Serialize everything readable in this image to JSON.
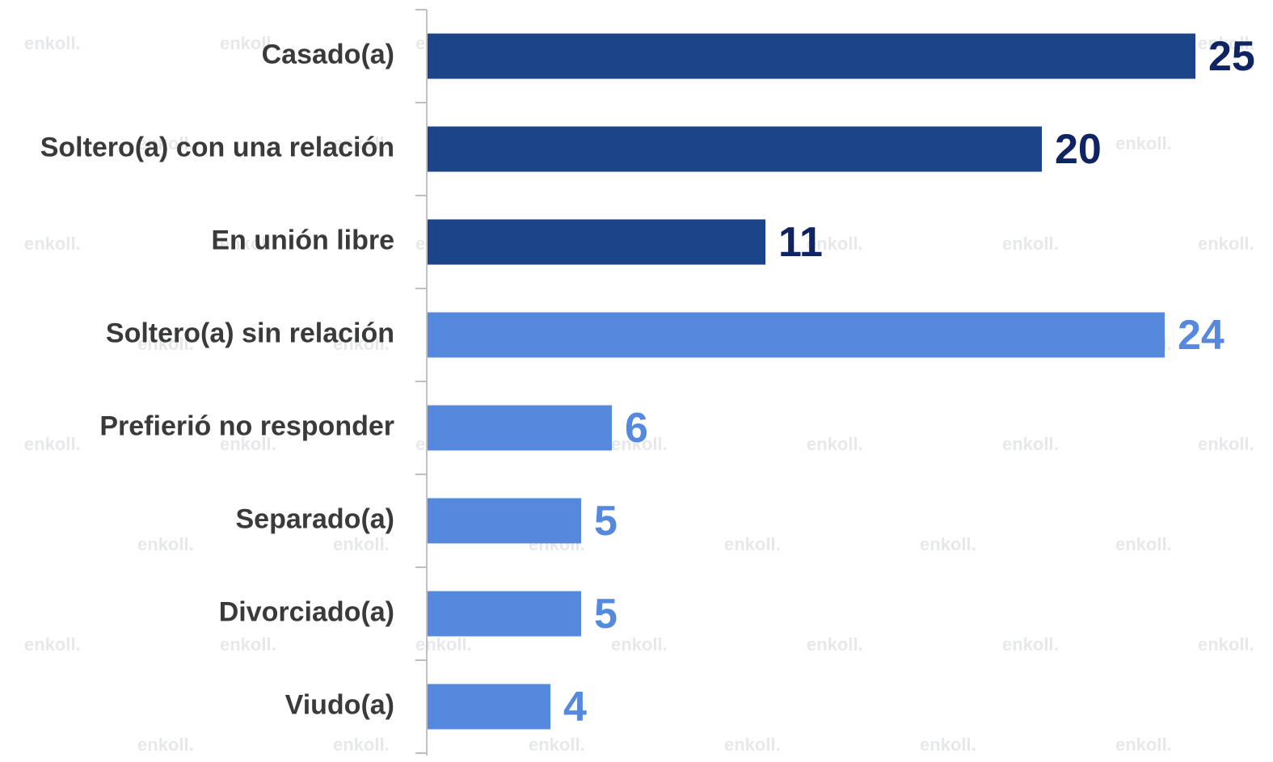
{
  "chart_data": {
    "type": "bar",
    "orientation": "horizontal",
    "categories": [
      "Casado(a)",
      "Soltero(a) con una relación",
      "En unión libre",
      "Soltero(a) sin relación",
      "Prefierió no responder",
      "Separado(a)",
      "Divorciado(a)",
      "Viudo(a)"
    ],
    "values": [
      25,
      20,
      11,
      24,
      6,
      5,
      5,
      4
    ],
    "colors": [
      "#1c4489",
      "#1c4489",
      "#1c4489",
      "#5489de",
      "#5489de",
      "#5489de",
      "#5489de",
      "#5489de"
    ],
    "value_label_colors": [
      "#0f2462",
      "#0f2462",
      "#0f2462",
      "#5489de",
      "#5489de",
      "#5489de",
      "#5489de",
      "#5489de"
    ],
    "watermark": "enkoll."
  }
}
